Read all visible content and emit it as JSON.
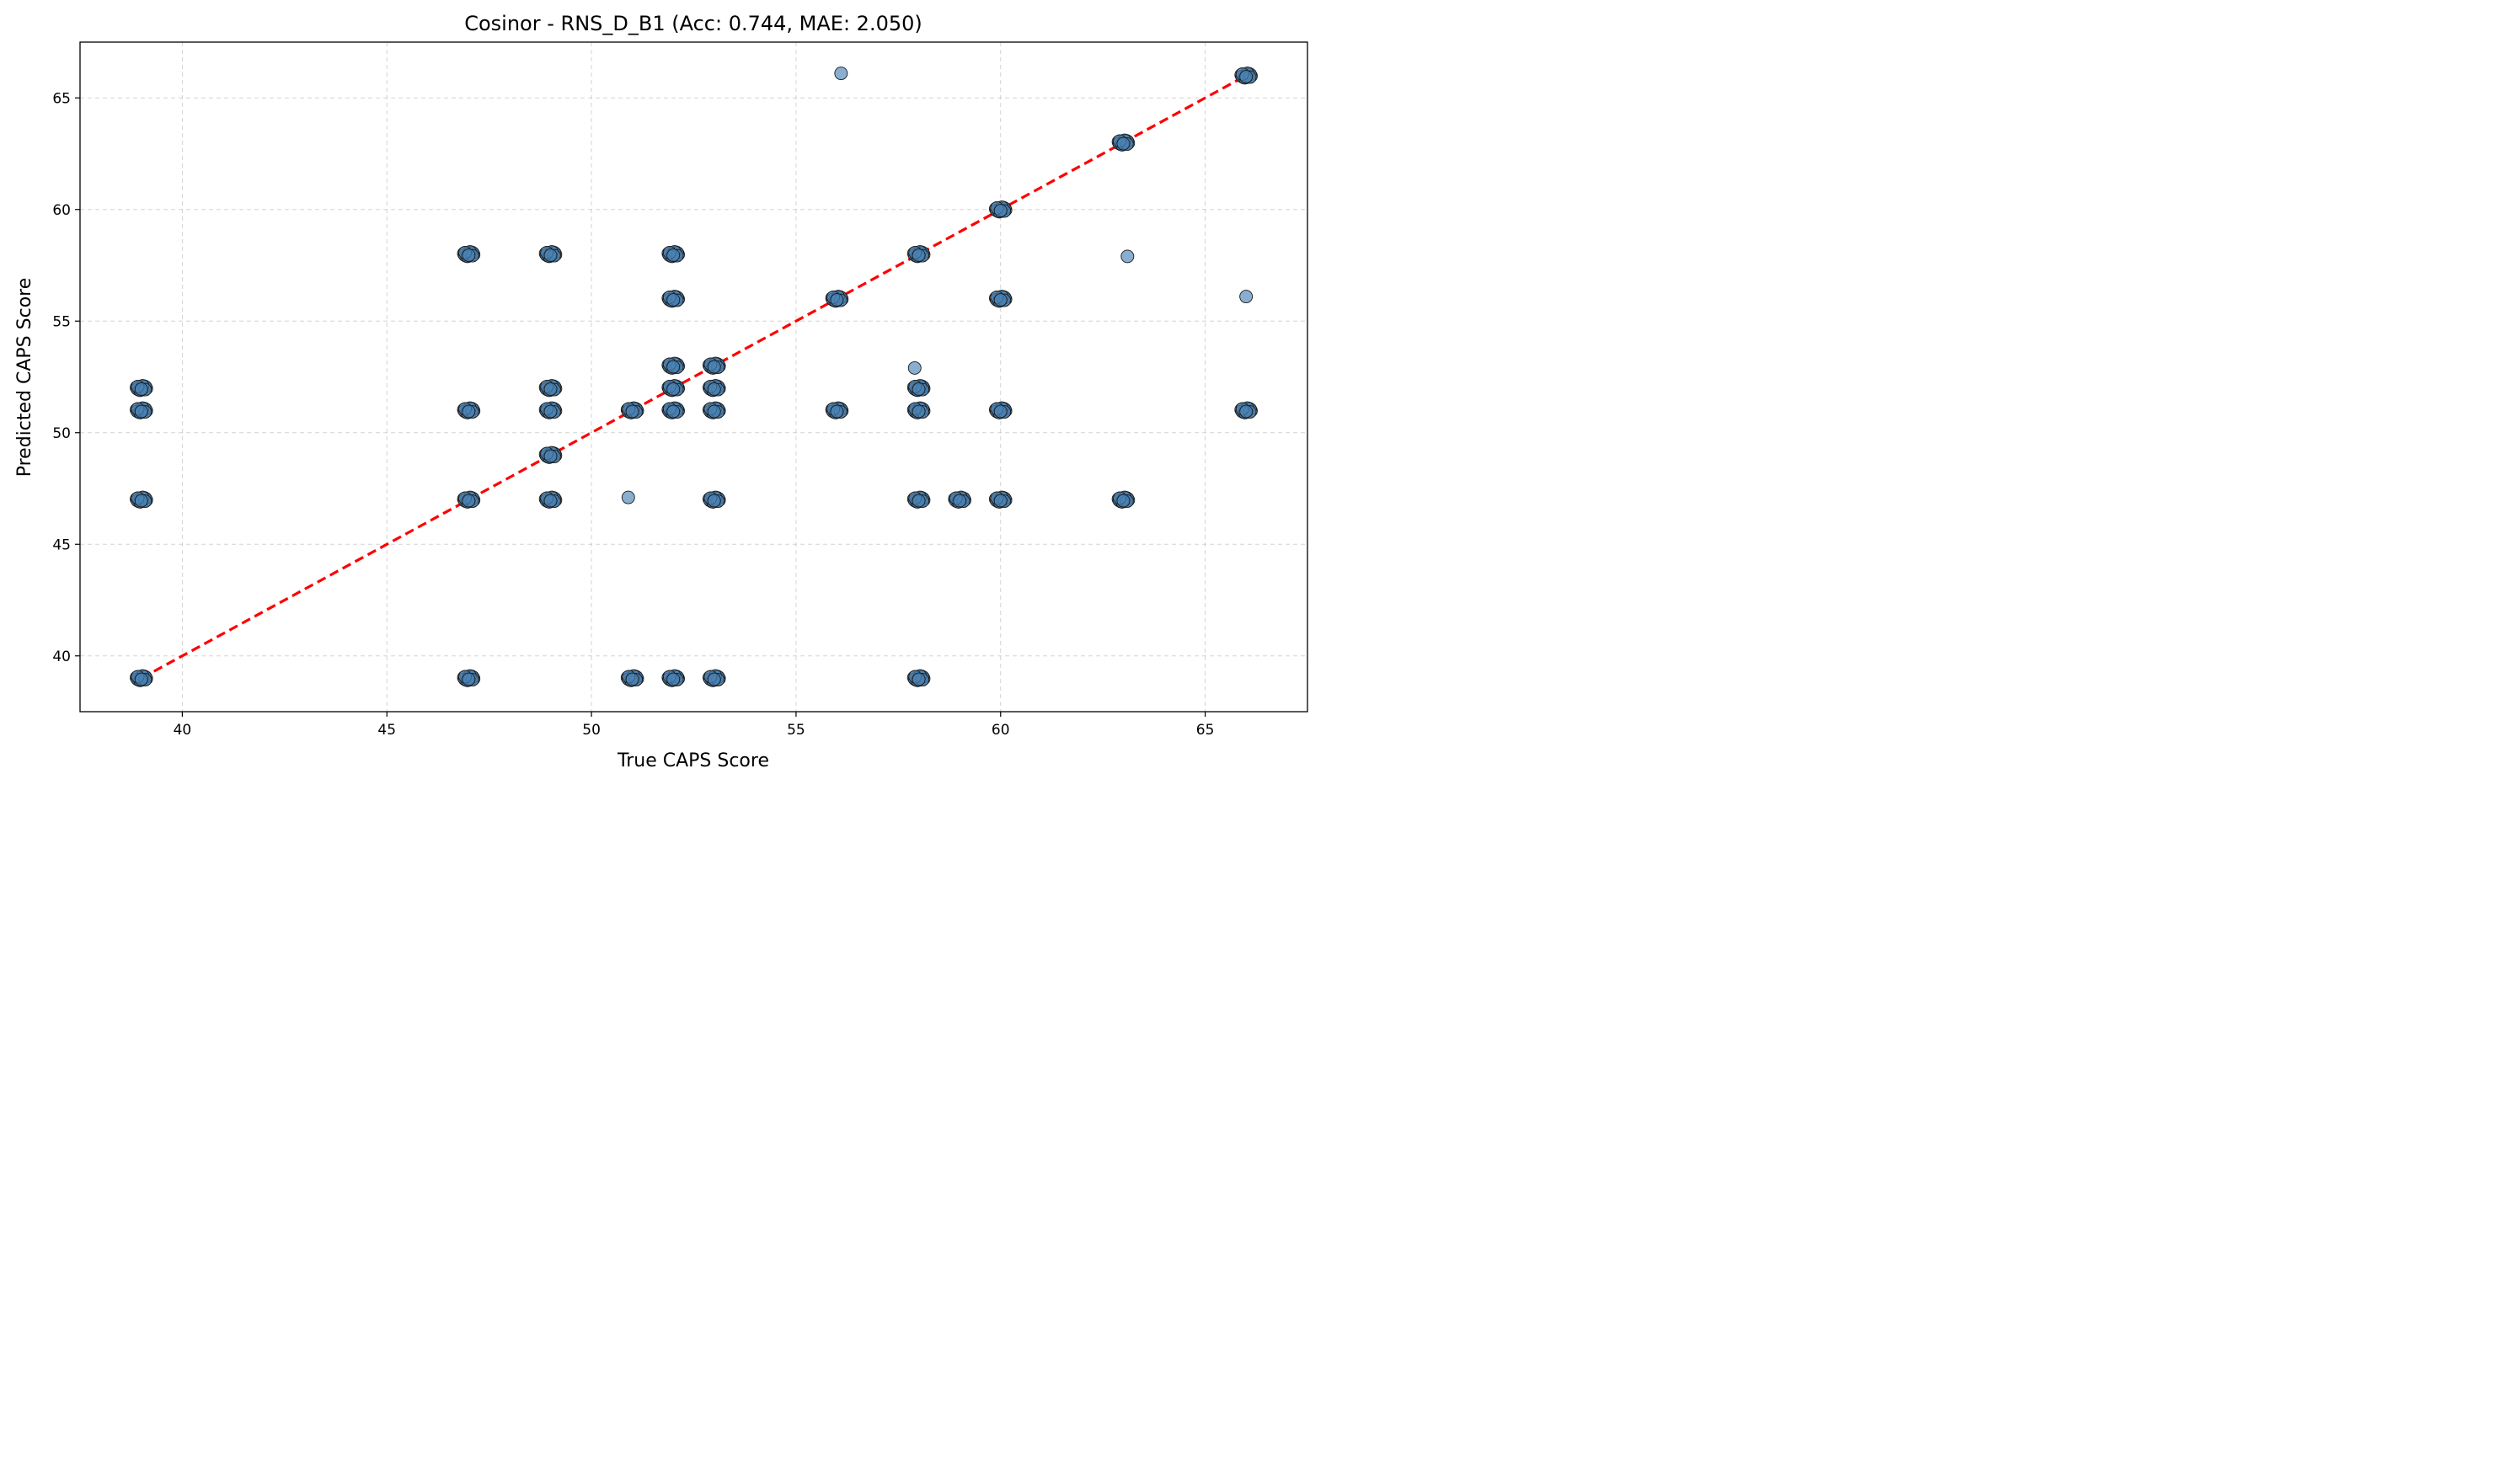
{
  "chart_data": {
    "type": "scatter",
    "title": "Cosinor - RNS_D_B1 (Acc: 0.744, MAE: 2.050)",
    "xlabel": "True CAPS Score",
    "ylabel": "Predicted CAPS Score",
    "xlim": [
      37.5,
      67.5
    ],
    "ylim": [
      37.5,
      67.5
    ],
    "xticks": [
      40,
      45,
      50,
      55,
      60,
      65
    ],
    "yticks": [
      40,
      45,
      50,
      55,
      60,
      65
    ],
    "xtick_labels": [
      "40",
      "45",
      "50",
      "55",
      "60",
      "65"
    ],
    "ytick_labels": [
      "40",
      "45",
      "50",
      "55",
      "60",
      "65"
    ],
    "grid": true,
    "point_color": "#4a82b6",
    "point_edge_color": "#1a1a1a",
    "reference_line": {
      "style": "dashed",
      "color": "#ff0000",
      "from": [
        39,
        39
      ],
      "to": [
        66,
        66
      ]
    },
    "clusters": [
      {
        "x": 39,
        "y": 39
      },
      {
        "x": 39,
        "y": 47
      },
      {
        "x": 39,
        "y": 51
      },
      {
        "x": 39,
        "y": 52
      },
      {
        "x": 47,
        "y": 39
      },
      {
        "x": 47,
        "y": 47
      },
      {
        "x": 47,
        "y": 51
      },
      {
        "x": 47,
        "y": 58
      },
      {
        "x": 49,
        "y": 47
      },
      {
        "x": 49,
        "y": 49
      },
      {
        "x": 49,
        "y": 51
      },
      {
        "x": 49,
        "y": 52
      },
      {
        "x": 49,
        "y": 58
      },
      {
        "x": 51,
        "y": 39
      },
      {
        "x": 51,
        "y": 51
      },
      {
        "x": 52,
        "y": 39
      },
      {
        "x": 52,
        "y": 51
      },
      {
        "x": 52,
        "y": 52
      },
      {
        "x": 52,
        "y": 53
      },
      {
        "x": 52,
        "y": 56
      },
      {
        "x": 52,
        "y": 58
      },
      {
        "x": 53,
        "y": 39
      },
      {
        "x": 53,
        "y": 47
      },
      {
        "x": 53,
        "y": 51
      },
      {
        "x": 53,
        "y": 52
      },
      {
        "x": 53,
        "y": 53
      },
      {
        "x": 56,
        "y": 51
      },
      {
        "x": 56,
        "y": 56
      },
      {
        "x": 58,
        "y": 39
      },
      {
        "x": 58,
        "y": 47
      },
      {
        "x": 58,
        "y": 51
      },
      {
        "x": 58,
        "y": 52
      },
      {
        "x": 58,
        "y": 58
      },
      {
        "x": 59,
        "y": 47
      },
      {
        "x": 60,
        "y": 47
      },
      {
        "x": 60,
        "y": 51
      },
      {
        "x": 60,
        "y": 56
      },
      {
        "x": 60,
        "y": 60
      },
      {
        "x": 63,
        "y": 47
      },
      {
        "x": 63,
        "y": 63
      },
      {
        "x": 66,
        "y": 51
      },
      {
        "x": 66,
        "y": 66
      }
    ],
    "single_points": [
      {
        "x": 56.1,
        "y": 66.1
      },
      {
        "x": 63.1,
        "y": 57.9
      },
      {
        "x": 66.0,
        "y": 56.1
      },
      {
        "x": 57.9,
        "y": 52.9
      },
      {
        "x": 50.9,
        "y": 47.1
      }
    ]
  }
}
